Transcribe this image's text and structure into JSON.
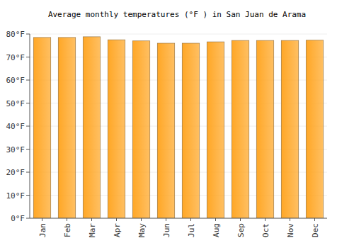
{
  "chart_data": {
    "type": "bar",
    "title": "Average monthly temperatures (°F ) in San Juan de Arama",
    "categories": [
      "Jan",
      "Feb",
      "Mar",
      "Apr",
      "May",
      "Jun",
      "Jul",
      "Aug",
      "Sep",
      "Oct",
      "Nov",
      "Dec"
    ],
    "values": [
      78.5,
      78.5,
      78.8,
      77.5,
      77.0,
      76.0,
      76.0,
      76.6,
      77.2,
      77.2,
      77.2,
      77.3
    ],
    "color": "#ffa726",
    "ylim": [
      0,
      80
    ],
    "yticks": [
      {
        "value": 0,
        "label": "0°F"
      },
      {
        "value": 10,
        "label": "10°F"
      },
      {
        "value": 20,
        "label": "20°F"
      },
      {
        "value": 30,
        "label": "30°F"
      },
      {
        "value": 40,
        "label": "40°F"
      },
      {
        "value": 50,
        "label": "50°F"
      },
      {
        "value": 60,
        "label": "60°F"
      },
      {
        "value": 70,
        "label": "70°F"
      },
      {
        "value": 80,
        "label": "80°F"
      }
    ],
    "grid": true
  }
}
